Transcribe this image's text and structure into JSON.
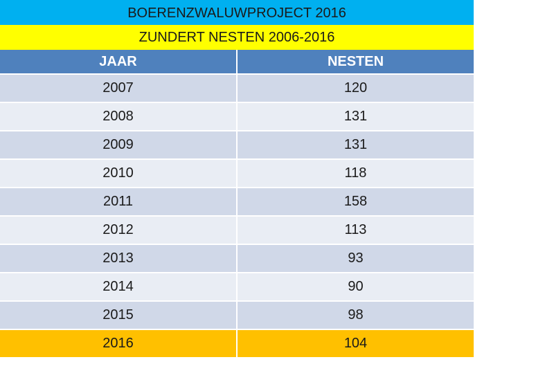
{
  "banner": {
    "project": "BOERENZWALUWPROJECT  2016",
    "title": "ZUNDERT  NESTEN   2006-2016"
  },
  "colors": {
    "project_bg": "#00b0f0",
    "title_bg": "#ffff00",
    "header_bg": "#4f81bd",
    "row_odd_bg": "#d0d8e8",
    "row_even_bg": "#e9edf4",
    "highlight_bg": "#ffc000"
  },
  "table": {
    "headers": [
      "JAAR",
      "NESTEN"
    ],
    "rows": [
      {
        "jaar": "2007",
        "nesten": "120"
      },
      {
        "jaar": "2008",
        "nesten": "131"
      },
      {
        "jaar": "2009",
        "nesten": "131"
      },
      {
        "jaar": "2010",
        "nesten": "118"
      },
      {
        "jaar": "2011",
        "nesten": "158"
      },
      {
        "jaar": "2012",
        "nesten": "113"
      },
      {
        "jaar": "2013",
        "nesten": "93"
      },
      {
        "jaar": "2014",
        "nesten": "90"
      },
      {
        "jaar": "2015",
        "nesten": "98"
      },
      {
        "jaar": "2016",
        "nesten": "104",
        "highlight": true
      }
    ]
  }
}
